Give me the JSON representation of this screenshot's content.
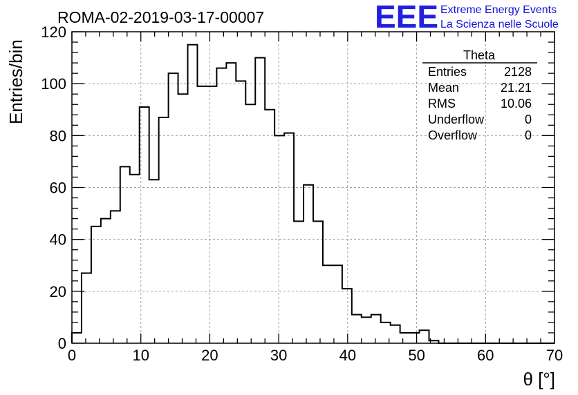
{
  "chart_data": {
    "type": "bar",
    "title": "ROMA-02-2019-03-17-00007",
    "xlabel": "θ [°]",
    "ylabel": "Entries/bin",
    "xlim": [
      0,
      70
    ],
    "ylim": [
      0,
      120
    ],
    "x_ticks": [
      0,
      10,
      20,
      30,
      40,
      50,
      60,
      70
    ],
    "y_ticks": [
      0,
      20,
      40,
      60,
      80,
      100,
      120
    ],
    "grid": true,
    "bin_width": 1.4,
    "values": [
      4,
      27,
      45,
      48,
      51,
      68,
      65,
      91,
      63,
      87,
      104,
      96,
      115,
      99,
      99,
      106,
      108,
      101,
      92,
      110,
      90,
      80,
      81,
      47,
      61,
      47,
      30,
      30,
      21,
      11,
      10,
      11,
      8,
      7,
      4,
      4,
      5,
      1,
      0,
      0,
      0,
      0,
      0,
      0,
      0,
      0,
      0,
      0,
      0,
      0
    ],
    "stats": {
      "name": "Theta",
      "rows": [
        {
          "label": "Entries",
          "value": "2128"
        },
        {
          "label": "Mean",
          "value": "21.21"
        },
        {
          "label": "RMS",
          "value": "10.06"
        },
        {
          "label": "Underflow",
          "value": "0"
        },
        {
          "label": "Overflow",
          "value": "0"
        }
      ]
    }
  },
  "logo": {
    "text": "EEE",
    "line1": "Extreme Energy Events",
    "line2": "La Scienza nelle Scuole",
    "color": "#2020e0"
  }
}
